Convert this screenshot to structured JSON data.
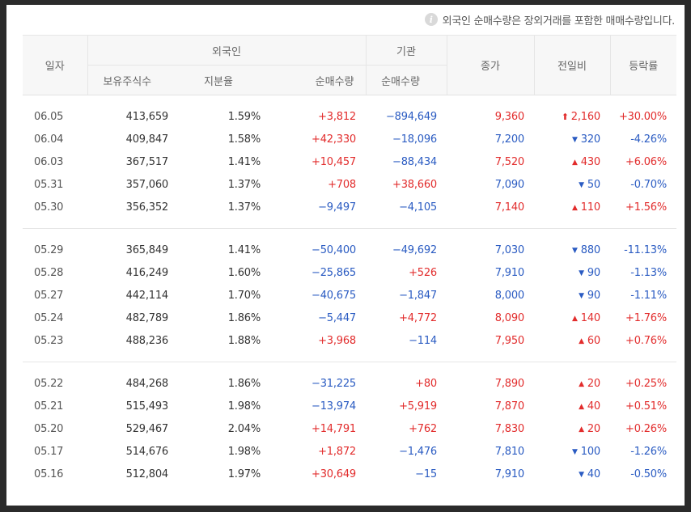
{
  "notice": "외국인 순매수량은 장외거래를 포함한 매매수량입니다.",
  "info_icon": "info-icon",
  "header": {
    "date": "일자",
    "foreign": "외국인",
    "institution": "기관",
    "close": "종가",
    "change": "전일비",
    "rate": "등락률",
    "holdings": "보유주식수",
    "ratio": "지분율",
    "foreign_net": "순매수량",
    "inst_net": "순매수량"
  },
  "colors": {
    "up": "#e22c2c",
    "down": "#2a5bc2"
  },
  "groups": [
    [
      {
        "date": "06.05",
        "holdings": "413,659",
        "ratio": "1.59%",
        "foreign_net": "+3,812",
        "inst_net": "−894,649",
        "close": "9,360",
        "dir": "limit-up",
        "change": "2,160",
        "rate": "+30.00%"
      },
      {
        "date": "06.04",
        "holdings": "409,847",
        "ratio": "1.58%",
        "foreign_net": "+42,330",
        "inst_net": "−18,096",
        "close": "7,200",
        "dir": "down",
        "change": "320",
        "rate": "-4.26%"
      },
      {
        "date": "06.03",
        "holdings": "367,517",
        "ratio": "1.41%",
        "foreign_net": "+10,457",
        "inst_net": "−88,434",
        "close": "7,520",
        "dir": "up",
        "change": "430",
        "rate": "+6.06%"
      },
      {
        "date": "05.31",
        "holdings": "357,060",
        "ratio": "1.37%",
        "foreign_net": "+708",
        "inst_net": "+38,660",
        "close": "7,090",
        "dir": "down",
        "change": "50",
        "rate": "-0.70%"
      },
      {
        "date": "05.30",
        "holdings": "356,352",
        "ratio": "1.37%",
        "foreign_net": "−9,497",
        "inst_net": "−4,105",
        "close": "7,140",
        "dir": "up",
        "change": "110",
        "rate": "+1.56%"
      }
    ],
    [
      {
        "date": "05.29",
        "holdings": "365,849",
        "ratio": "1.41%",
        "foreign_net": "−50,400",
        "inst_net": "−49,692",
        "close": "7,030",
        "dir": "down",
        "change": "880",
        "rate": "-11.13%"
      },
      {
        "date": "05.28",
        "holdings": "416,249",
        "ratio": "1.60%",
        "foreign_net": "−25,865",
        "inst_net": "+526",
        "close": "7,910",
        "dir": "down",
        "change": "90",
        "rate": "-1.13%"
      },
      {
        "date": "05.27",
        "holdings": "442,114",
        "ratio": "1.70%",
        "foreign_net": "−40,675",
        "inst_net": "−1,847",
        "close": "8,000",
        "dir": "down",
        "change": "90",
        "rate": "-1.11%"
      },
      {
        "date": "05.24",
        "holdings": "482,789",
        "ratio": "1.86%",
        "foreign_net": "−5,447",
        "inst_net": "+4,772",
        "close": "8,090",
        "dir": "up",
        "change": "140",
        "rate": "+1.76%"
      },
      {
        "date": "05.23",
        "holdings": "488,236",
        "ratio": "1.88%",
        "foreign_net": "+3,968",
        "inst_net": "−114",
        "close": "7,950",
        "dir": "up",
        "change": "60",
        "rate": "+0.76%"
      }
    ],
    [
      {
        "date": "05.22",
        "holdings": "484,268",
        "ratio": "1.86%",
        "foreign_net": "−31,225",
        "inst_net": "+80",
        "close": "7,890",
        "dir": "up",
        "change": "20",
        "rate": "+0.25%"
      },
      {
        "date": "05.21",
        "holdings": "515,493",
        "ratio": "1.98%",
        "foreign_net": "−13,974",
        "inst_net": "+5,919",
        "close": "7,870",
        "dir": "up",
        "change": "40",
        "rate": "+0.51%"
      },
      {
        "date": "05.20",
        "holdings": "529,467",
        "ratio": "2.04%",
        "foreign_net": "+14,791",
        "inst_net": "+762",
        "close": "7,830",
        "dir": "up",
        "change": "20",
        "rate": "+0.26%"
      },
      {
        "date": "05.17",
        "holdings": "514,676",
        "ratio": "1.98%",
        "foreign_net": "+1,872",
        "inst_net": "−1,476",
        "close": "7,810",
        "dir": "down",
        "change": "100",
        "rate": "-1.26%"
      },
      {
        "date": "05.16",
        "holdings": "512,804",
        "ratio": "1.97%",
        "foreign_net": "+30,649",
        "inst_net": "−15",
        "close": "7,910",
        "dir": "down",
        "change": "40",
        "rate": "-0.50%"
      }
    ]
  ]
}
